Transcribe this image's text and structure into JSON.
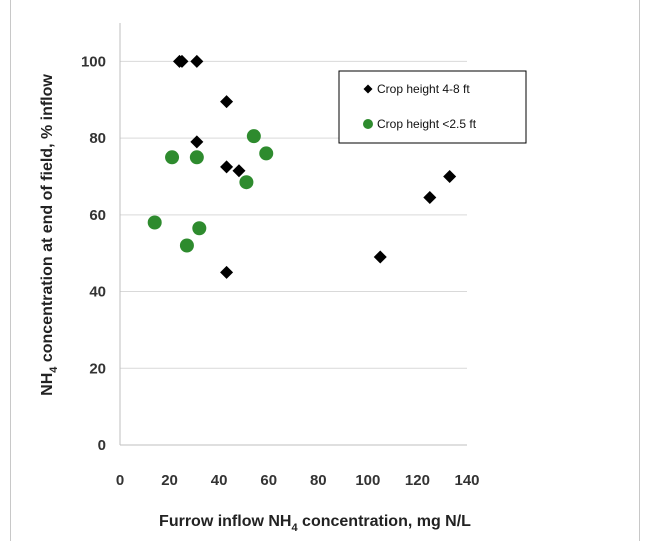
{
  "chart_data": {
    "type": "scatter",
    "title": "",
    "xlabel": "Furrow inflow NH4 concentration, mg N/L",
    "xlabel_parts": {
      "main": "Furrow inflow NH",
      "sub": "4",
      "tail": " concentration, mg N/L"
    },
    "ylabel": "NH4 concentration at end of field, % inflow",
    "ylabel_parts": {
      "main": "NH",
      "sub": "4",
      "tail": " concentration at end of field, % inflow"
    },
    "xlim": [
      0,
      140
    ],
    "ylim": [
      0,
      110
    ],
    "x_ticks": [
      0,
      20,
      40,
      60,
      80,
      100,
      120,
      140
    ],
    "y_ticks": [
      0,
      20,
      40,
      60,
      80,
      100
    ],
    "grid": "horizontal",
    "legend_position": "top-right",
    "series": [
      {
        "name": "Crop height 4-8 ft",
        "marker": "diamond",
        "color": "#000000",
        "points": [
          {
            "x": 24,
            "y": 100
          },
          {
            "x": 25,
            "y": 100
          },
          {
            "x": 31,
            "y": 100
          },
          {
            "x": 43,
            "y": 89.5
          },
          {
            "x": 31,
            "y": 79
          },
          {
            "x": 43,
            "y": 72.5
          },
          {
            "x": 48,
            "y": 71.5
          },
          {
            "x": 43,
            "y": 45
          },
          {
            "x": 105,
            "y": 49
          },
          {
            "x": 125,
            "y": 64.5
          },
          {
            "x": 133,
            "y": 70
          }
        ]
      },
      {
        "name": "Crop height <2.5 ft",
        "marker": "circle",
        "color": "#2e8b2e",
        "points": [
          {
            "x": 14,
            "y": 58
          },
          {
            "x": 21,
            "y": 75
          },
          {
            "x": 27,
            "y": 52
          },
          {
            "x": 31,
            "y": 75
          },
          {
            "x": 32,
            "y": 56.5
          },
          {
            "x": 51,
            "y": 68.5
          },
          {
            "x": 54,
            "y": 80.5
          },
          {
            "x": 59,
            "y": 76
          }
        ]
      }
    ]
  }
}
